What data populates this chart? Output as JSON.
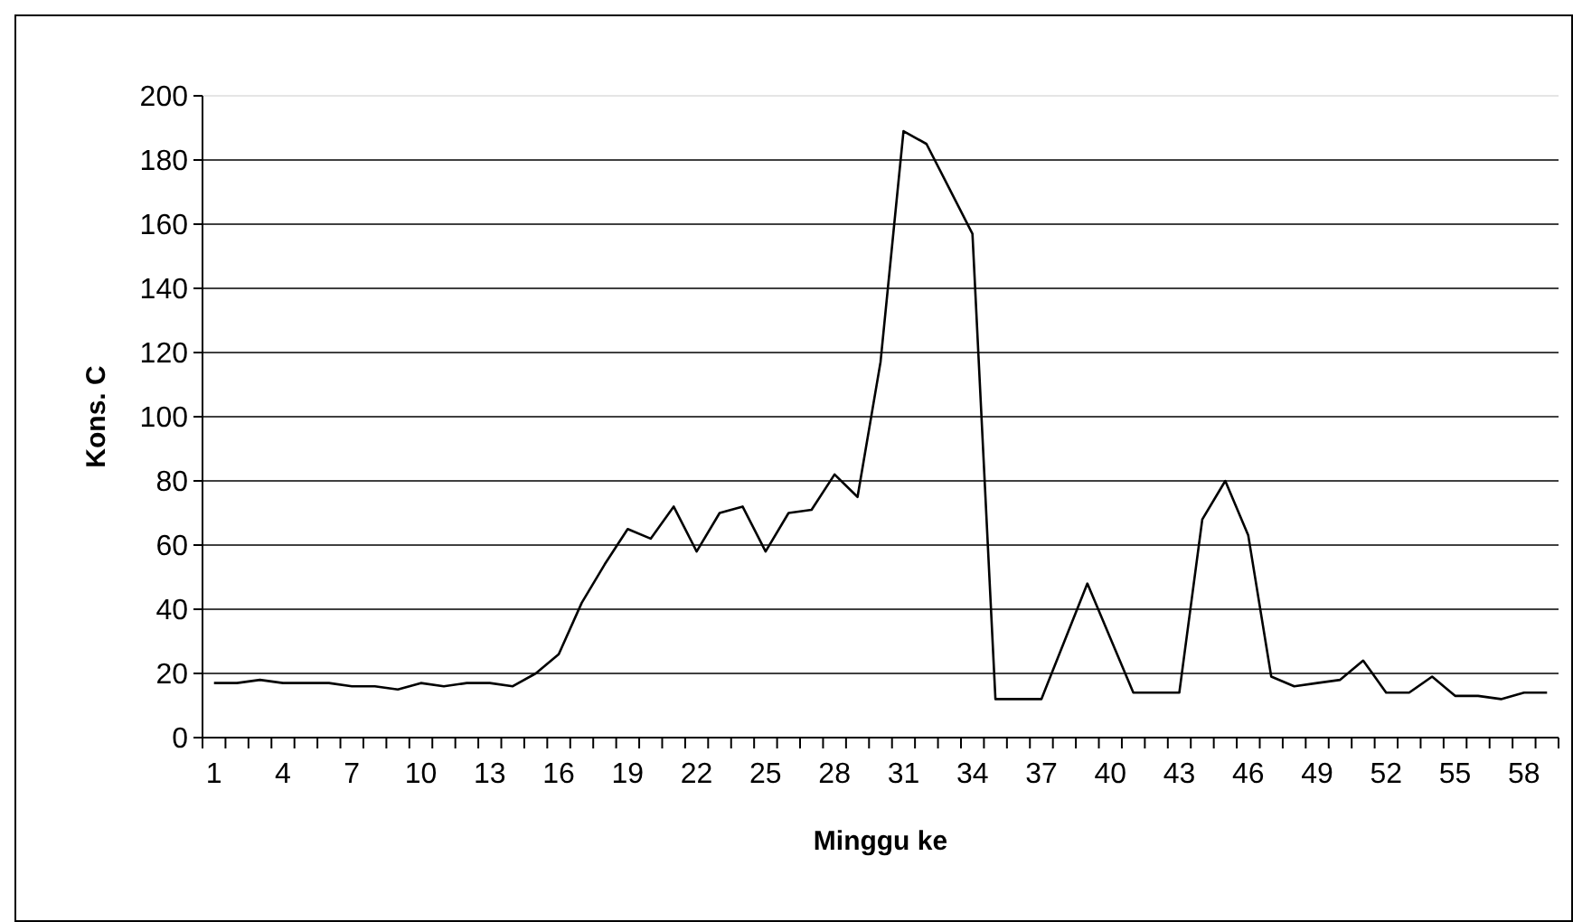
{
  "chart_data": {
    "type": "line",
    "xlabel": "Minggu ke",
    "ylabel": "Kons. C",
    "categories": [
      "1",
      null,
      null,
      "4",
      null,
      null,
      "7",
      null,
      null,
      "10",
      null,
      null,
      "13",
      null,
      null,
      "16",
      null,
      null,
      "19",
      null,
      null,
      "22",
      null,
      null,
      "25",
      null,
      null,
      "28",
      null,
      null,
      "31",
      null,
      null,
      "34",
      null,
      null,
      "37",
      null,
      null,
      "40",
      null,
      null,
      "43",
      null,
      null,
      "46",
      null,
      null,
      "49",
      null,
      null,
      "52",
      null,
      null,
      "55",
      null,
      null,
      "58",
      null
    ],
    "series": [
      {
        "color": "#000000",
        "values": [
          17,
          17,
          18,
          17,
          17,
          17,
          16,
          16,
          15,
          17,
          16,
          17,
          17,
          16,
          20,
          26,
          42,
          54,
          65,
          62,
          72,
          58,
          70,
          72,
          58,
          70,
          71,
          82,
          75,
          117,
          189,
          185,
          171,
          157,
          12,
          12,
          12,
          30,
          48,
          31,
          14,
          14,
          14,
          68,
          80,
          63,
          19,
          16,
          17,
          18,
          24,
          14,
          14,
          19,
          13,
          13,
          12,
          14,
          14
        ]
      }
    ],
    "ylim": [
      0,
      200
    ],
    "yticks": [
      0,
      20,
      40,
      60,
      80,
      100,
      120,
      140,
      160,
      180,
      200
    ],
    "grid": "y",
    "marker": "none",
    "line_style": "solid"
  }
}
